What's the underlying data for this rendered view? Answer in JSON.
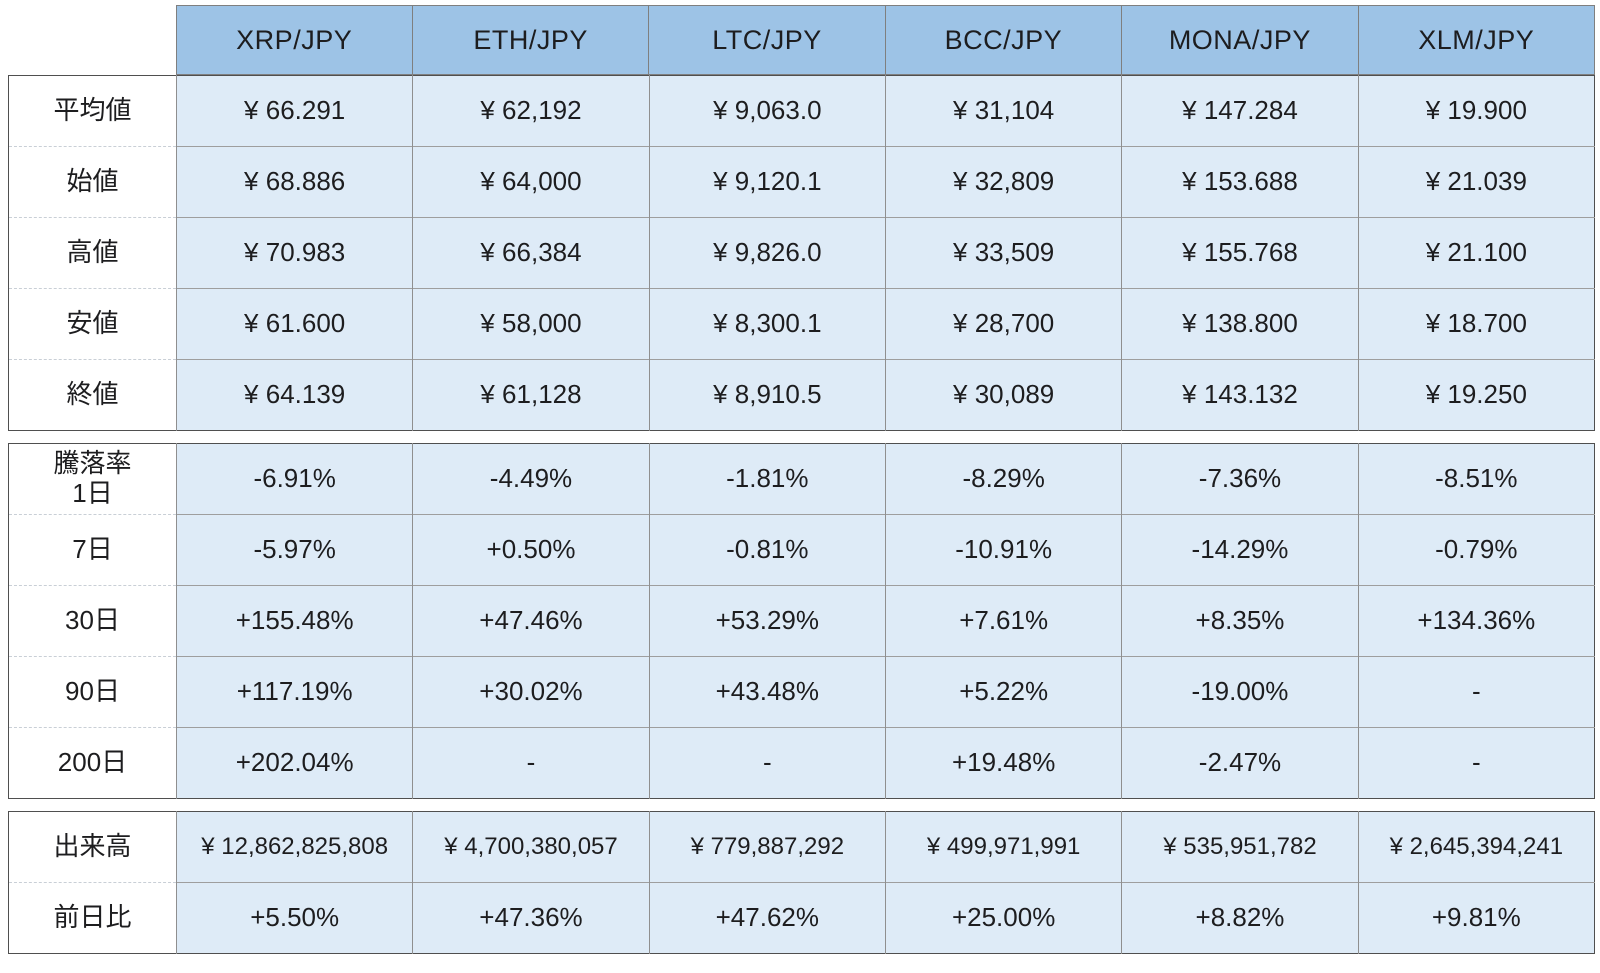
{
  "chart_data": {
    "type": "table",
    "columns": [
      "XRP/JPY",
      "ETH/JPY",
      "LTC/JPY",
      "BCC/JPY",
      "MONA/JPY",
      "XLM/JPY"
    ],
    "sections": [
      {
        "name": "prices",
        "rows": [
          {
            "id": "average",
            "label_lines": [
              "平均値"
            ],
            "cells": [
              "¥ 66.291",
              "¥ 62,192",
              "¥ 9,063.0",
              "¥ 31,104",
              "¥ 147.284",
              "¥ 19.900"
            ]
          },
          {
            "id": "open",
            "label_lines": [
              "始値"
            ],
            "cells": [
              "¥ 68.886",
              "¥ 64,000",
              "¥ 9,120.1",
              "¥ 32,809",
              "¥ 153.688",
              "¥ 21.039"
            ]
          },
          {
            "id": "high",
            "label_lines": [
              "高値"
            ],
            "cells": [
              "¥ 70.983",
              "¥ 66,384",
              "¥ 9,826.0",
              "¥ 33,509",
              "¥ 155.768",
              "¥ 21.100"
            ]
          },
          {
            "id": "low",
            "label_lines": [
              "安値"
            ],
            "cells": [
              "¥ 61.600",
              "¥ 58,000",
              "¥ 8,300.1",
              "¥ 28,700",
              "¥ 138.800",
              "¥ 18.700"
            ]
          },
          {
            "id": "close",
            "label_lines": [
              "終値"
            ],
            "cells": [
              "¥ 64.139",
              "¥ 61,128",
              "¥ 8,910.5",
              "¥ 30,089",
              "¥ 143.132",
              "¥ 19.250"
            ]
          }
        ]
      },
      {
        "name": "change-rates",
        "rows": [
          {
            "id": "change-1d",
            "label_lines": [
              "騰落率",
              "1日"
            ],
            "cells": [
              "-6.91%",
              "-4.49%",
              "-1.81%",
              "-8.29%",
              "-7.36%",
              "-8.51%"
            ]
          },
          {
            "id": "change-7d",
            "label_lines": [
              "7日"
            ],
            "cells": [
              "-5.97%",
              "+0.50%",
              "-0.81%",
              "-10.91%",
              "-14.29%",
              "-0.79%"
            ]
          },
          {
            "id": "change-30d",
            "label_lines": [
              "30日"
            ],
            "cells": [
              "+155.48%",
              "+47.46%",
              "+53.29%",
              "+7.61%",
              "+8.35%",
              "+134.36%"
            ]
          },
          {
            "id": "change-90d",
            "label_lines": [
              "90日"
            ],
            "cells": [
              "+117.19%",
              "+30.02%",
              "+43.48%",
              "+5.22%",
              "-19.00%",
              "-"
            ]
          },
          {
            "id": "change-200d",
            "label_lines": [
              "200日"
            ],
            "cells": [
              "+202.04%",
              "-",
              "-",
              "+19.48%",
              "-2.47%",
              "-"
            ]
          }
        ]
      },
      {
        "name": "volume",
        "rows": [
          {
            "id": "volume",
            "label_lines": [
              "出来高"
            ],
            "cells": [
              "¥ 12,862,825,808",
              "¥ 4,700,380,057",
              "¥ 779,887,292",
              "¥ 499,971,991",
              "¥ 535,951,782",
              "¥ 2,645,394,241"
            ]
          },
          {
            "id": "vs-prev-day",
            "label_lines": [
              "前日比"
            ],
            "cells": [
              "+5.50%",
              "+47.36%",
              "+47.62%",
              "+25.00%",
              "+8.82%",
              "+9.81%"
            ]
          }
        ]
      }
    ],
    "title": "",
    "layout": {
      "label_column_first": true,
      "sections_separated_by_gaps": true
    }
  },
  "colors": {
    "header_bg": "#9dc3e6",
    "cell_bg": "#deebf7",
    "label_bg": "#ffffff",
    "section_border": "#4f4f4f",
    "inner_border": "#8f8f8f",
    "text": "#1d1d1f"
  }
}
